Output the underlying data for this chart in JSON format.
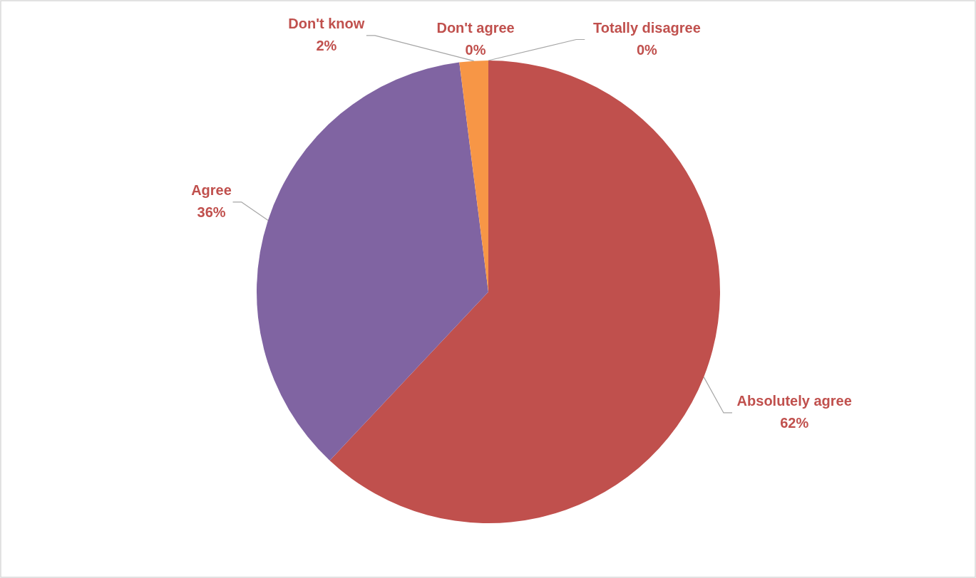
{
  "chart_data": {
    "type": "pie",
    "categories": [
      "Absolutely agree",
      "Agree",
      "Don't know",
      "Don't agree",
      "Totally disagree"
    ],
    "values": [
      62,
      36,
      2,
      0,
      0
    ],
    "value_labels": [
      "62%",
      "36%",
      "2%",
      "0%",
      "0%"
    ],
    "colors": [
      "#c0504d",
      "#8064a2",
      "#f79646",
      "#9bbb59",
      "#4bacc6"
    ]
  }
}
